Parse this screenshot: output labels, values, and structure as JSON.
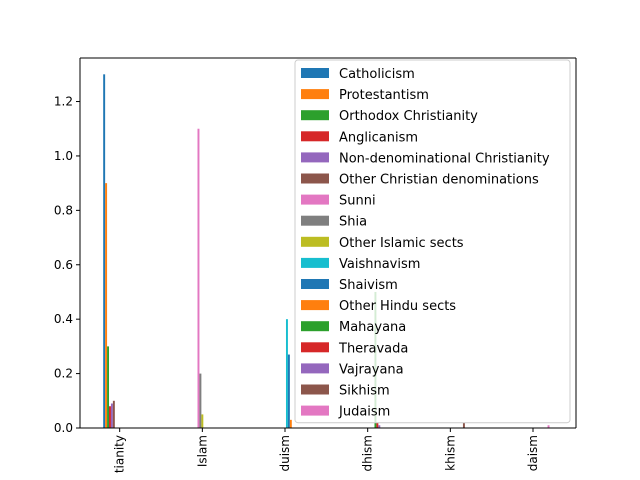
{
  "chart_data": {
    "type": "bar",
    "categories": [
      "Christianity",
      "Islam",
      "Hinduism",
      "Buddhism",
      "Sikhism",
      "Judaism"
    ],
    "category_tick_labels_visible": [
      "tianity",
      "Islam",
      "duism",
      "dhism",
      "khism",
      "daism"
    ],
    "ylim": [
      0,
      1.36
    ],
    "yticks": [
      "0.0",
      "0.2",
      "0.4",
      "0.6",
      "0.8",
      "1.0",
      "1.2"
    ],
    "legend_position": "upper-right",
    "grid": false,
    "series": [
      {
        "name": "Catholicism",
        "color": "#1f77b4",
        "values": [
          1.3,
          0,
          0,
          0,
          0,
          0
        ]
      },
      {
        "name": "Protestantism",
        "color": "#ff7f0e",
        "values": [
          0.9,
          0,
          0,
          0,
          0,
          0
        ]
      },
      {
        "name": "Orthodox Christianity",
        "color": "#2ca02c",
        "values": [
          0.3,
          0,
          0,
          0,
          0,
          0
        ]
      },
      {
        "name": "Anglicanism",
        "color": "#d62728",
        "values": [
          0.08,
          0,
          0,
          0,
          0,
          0
        ]
      },
      {
        "name": "Non-denominational Christianity",
        "color": "#9467bd",
        "values": [
          0.09,
          0,
          0,
          0,
          0,
          0
        ]
      },
      {
        "name": "Other Christian denominations",
        "color": "#8c564b",
        "values": [
          0.1,
          0,
          0,
          0,
          0,
          0
        ]
      },
      {
        "name": "Sunni",
        "color": "#e377c2",
        "values": [
          0,
          1.1,
          0,
          0,
          0,
          0
        ]
      },
      {
        "name": "Shia",
        "color": "#7f7f7f",
        "values": [
          0,
          0.2,
          0,
          0,
          0,
          0
        ]
      },
      {
        "name": "Other Islamic sects",
        "color": "#bcbd22",
        "values": [
          0,
          0.05,
          0,
          0,
          0,
          0
        ]
      },
      {
        "name": "Vaishnavism",
        "color": "#17becf",
        "values": [
          0,
          0,
          0.4,
          0,
          0,
          0
        ]
      },
      {
        "name": "Shaivism",
        "color": "#1f77b4",
        "values": [
          0,
          0,
          0.27,
          0,
          0,
          0
        ]
      },
      {
        "name": "Other Hindu sects",
        "color": "#ff7f0e",
        "values": [
          0,
          0,
          0.03,
          0,
          0,
          0
        ]
      },
      {
        "name": "Mahayana",
        "color": "#2ca02c",
        "values": [
          0,
          0,
          0,
          0.5,
          0,
          0
        ]
      },
      {
        "name": "Theravada",
        "color": "#d62728",
        "values": [
          0,
          0,
          0,
          0.02,
          0,
          0
        ]
      },
      {
        "name": "Vajrayana",
        "color": "#9467bd",
        "values": [
          0,
          0,
          0,
          0.01,
          0,
          0
        ]
      },
      {
        "name": "Sikhism",
        "color": "#8c564b",
        "values": [
          0,
          0,
          0,
          0,
          0.02,
          0
        ]
      },
      {
        "name": "Judaism",
        "color": "#e377c2",
        "values": [
          0,
          0,
          0,
          0,
          0,
          0.01
        ]
      }
    ]
  }
}
